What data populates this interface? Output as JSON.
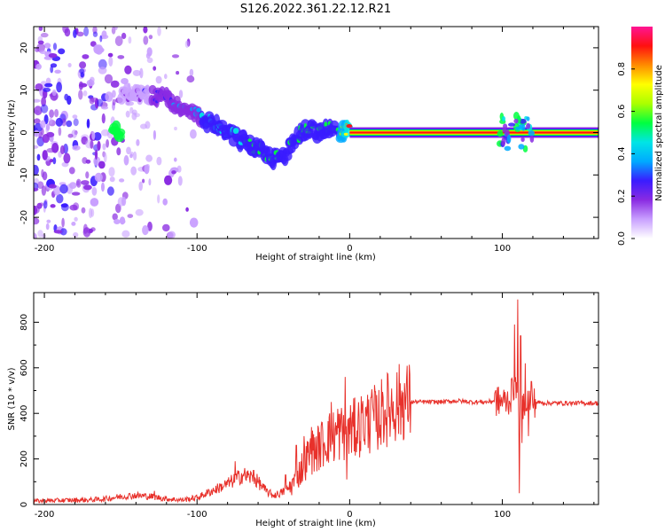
{
  "title": "S126.2022.361.22.12.R21",
  "chart_data": [
    {
      "type": "heatmap",
      "xlabel": "Height of straight line (km)",
      "ylabel": "Frequency (Hz)",
      "xlim": [
        -207,
        163
      ],
      "ylim": [
        -25,
        25
      ],
      "x_ticks": [
        -200,
        -100,
        0,
        100
      ],
      "y_ticks": [
        -20,
        -10,
        0,
        10,
        20
      ],
      "colorbar": {
        "label": "Normalized spectral amplitude",
        "range": [
          0,
          1
        ],
        "ticks": [
          0.0,
          0.2,
          0.4,
          0.6,
          0.8
        ],
        "tick_labels": [
          "0.0",
          "0.2",
          "0.4",
          "0.6",
          "0.8"
        ],
        "colors": [
          "#ffffff",
          "#c9a0ff",
          "#8a2be2",
          "#3a1cff",
          "#00aaff",
          "#00e5e5",
          "#00ff40",
          "#aaff00",
          "#ffff00",
          "#ff8c00",
          "#ff1010",
          "#ff1493"
        ]
      },
      "ridge": {
        "x": [
          -150,
          -140,
          -130,
          -120,
          -110,
          -100,
          -90,
          -80,
          -70,
          -60,
          -55,
          -50,
          -45,
          -40,
          -35,
          -30,
          -25,
          -20,
          -15,
          -10,
          -5,
          0,
          10,
          20,
          30,
          40,
          60,
          80,
          100,
          105,
          110,
          115,
          120,
          140,
          163
        ],
        "y": [
          9,
          8.5,
          9,
          8,
          6,
          4,
          2,
          0,
          -2,
          -4,
          -5,
          -6,
          -6.5,
          -4,
          -1,
          0.5,
          0.8,
          0,
          1.5,
          0.3,
          0,
          0.3,
          0,
          0,
          0,
          0,
          0,
          0,
          0,
          1.5,
          -1,
          0.5,
          0,
          0,
          0
        ],
        "amplitude": [
          0.15,
          0.2,
          0.25,
          0.3,
          0.35,
          0.4,
          0.45,
          0.45,
          0.5,
          0.5,
          0.55,
          0.55,
          0.55,
          0.55,
          0.5,
          0.5,
          0.5,
          0.5,
          0.55,
          0.55,
          0.6,
          0.9,
          0.95,
          0.95,
          0.95,
          0.95,
          0.95,
          0.95,
          0.9,
          0.5,
          0.4,
          0.5,
          0.95,
          0.95,
          0.95
        ]
      }
    },
    {
      "type": "line",
      "xlabel": "Height of straight line (km)",
      "ylabel": "SNR (10 * v/v)",
      "xlim": [
        -207,
        163
      ],
      "ylim": [
        0,
        930
      ],
      "x_ticks": [
        -200,
        -100,
        0,
        100
      ],
      "y_ticks": [
        0,
        200,
        400,
        600,
        800
      ],
      "series": [
        {
          "color": "#e8312b",
          "x": [
            -207,
            -190,
            -170,
            -160,
            -150,
            -140,
            -130,
            -120,
            -110,
            -100,
            -90,
            -80,
            -75,
            -70,
            -65,
            -60,
            -55,
            -50,
            -45,
            -40,
            -35,
            -30,
            -25,
            -20,
            -15,
            -10,
            -5,
            0,
            5,
            10,
            15,
            20,
            25,
            30,
            35,
            40,
            50,
            60,
            70,
            80,
            90,
            95,
            100,
            105,
            108,
            110,
            112,
            115,
            120,
            130,
            140,
            150,
            163
          ],
          "y": [
            15,
            18,
            20,
            25,
            35,
            40,
            35,
            25,
            20,
            30,
            60,
            90,
            110,
            130,
            120,
            100,
            60,
            40,
            50,
            70,
            110,
            180,
            230,
            250,
            290,
            300,
            320,
            320,
            340,
            360,
            370,
            395,
            420,
            440,
            455,
            450,
            450,
            450,
            455,
            450,
            450,
            455,
            450,
            460,
            520,
            470,
            380,
            470,
            450,
            445,
            445,
            445,
            445
          ]
        }
      ],
      "spikes": {
        "x": [
          -128,
          -75,
          -63,
          -42,
          -35,
          -30,
          -25,
          -18,
          -12,
          -8,
          -3,
          -2,
          1,
          8,
          14,
          18,
          22,
          34,
          37,
          100,
          103,
          106,
          108,
          110,
          111,
          112,
          113,
          115,
          117,
          119
        ],
        "y": [
          60,
          190,
          150,
          130,
          260,
          300,
          340,
          360,
          450,
          420,
          560,
          110,
          380,
          400,
          470,
          320,
          470,
          500,
          480,
          430,
          470,
          550,
          790,
          900,
          50,
          740,
          270,
          620,
          300,
          540
        ]
      }
    }
  ]
}
